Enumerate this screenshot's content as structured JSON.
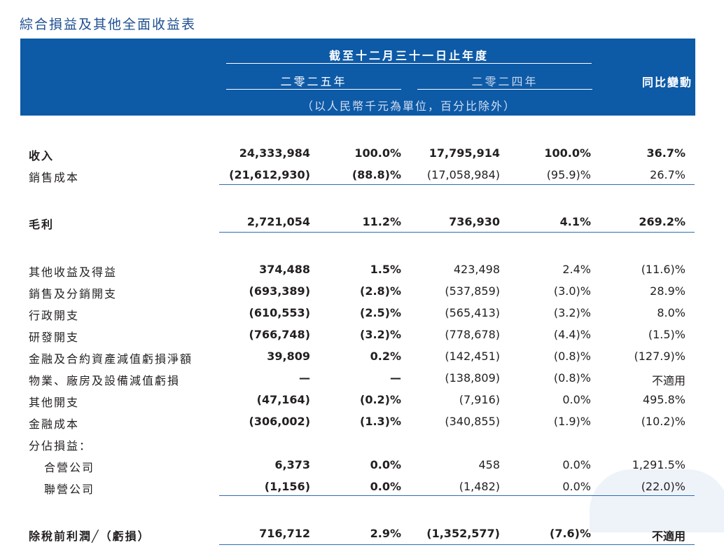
{
  "title": "綜合損益及其他全面收益表",
  "header": {
    "period": "截至十二月三十一日止年度",
    "year_current": "二零二五年",
    "year_prior": "二零二四年",
    "yoy": "同比變動",
    "unit_note": "（以人民幣千元為單位，百分比除外）"
  },
  "rows": [
    {
      "label": "收入",
      "bold": true,
      "v2025": "24,333,984",
      "p2025": "100.0%",
      "v2024": "17,795,914",
      "p2024": "100.0%",
      "yoy": "36.7%"
    },
    {
      "label": "銷售成本",
      "bold": false,
      "v2025": "(21,612,930)",
      "p2025": "(88.8)%",
      "v2024": "(17,058,984)",
      "p2024": "(95.9)%",
      "yoy": "26.7%"
    },
    {
      "label": "毛利",
      "bold": true,
      "v2025": "2,721,054",
      "p2025": "11.2%",
      "v2024": "736,930",
      "p2024": "4.1%",
      "yoy": "269.2%"
    },
    {
      "label": "其他收益及得益",
      "bold": false,
      "v2025": "374,488",
      "p2025": "1.5%",
      "v2024": "423,498",
      "p2024": "2.4%",
      "yoy": "(11.6)%"
    },
    {
      "label": "銷售及分銷開支",
      "bold": false,
      "v2025": "(693,389)",
      "p2025": "(2.8)%",
      "v2024": "(537,859)",
      "p2024": "(3.0)%",
      "yoy": "28.9%"
    },
    {
      "label": "行政開支",
      "bold": false,
      "v2025": "(610,553)",
      "p2025": "(2.5)%",
      "v2024": "(565,413)",
      "p2024": "(3.2)%",
      "yoy": "8.0%"
    },
    {
      "label": "研發開支",
      "bold": false,
      "v2025": "(766,748)",
      "p2025": "(3.2)%",
      "v2024": "(778,678)",
      "p2024": "(4.4)%",
      "yoy": "(1.5)%"
    },
    {
      "label": "金融及合約資產減值虧損淨額",
      "bold": false,
      "v2025": "39,809",
      "p2025": "0.2%",
      "v2024": "(142,451)",
      "p2024": "(0.8)%",
      "yoy": "(127.9)%"
    },
    {
      "label": "物業、廠房及設備減值虧損",
      "bold": false,
      "v2025": "—",
      "p2025": "—",
      "v2024": "(138,809)",
      "p2024": "(0.8)%",
      "yoy": "不適用"
    },
    {
      "label": "其他開支",
      "bold": false,
      "v2025": "(47,164)",
      "p2025": "(0.2)%",
      "v2024": "(7,916)",
      "p2024": "0.0%",
      "yoy": "495.8%"
    },
    {
      "label": "金融成本",
      "bold": false,
      "v2025": "(306,002)",
      "p2025": "(1.3)%",
      "v2024": "(340,855)",
      "p2024": "(1.9)%",
      "yoy": "(10.2)%"
    },
    {
      "label": "分佔損益：",
      "bold": false,
      "v2025": "",
      "p2025": "",
      "v2024": "",
      "p2024": "",
      "yoy": ""
    },
    {
      "label": "合營公司",
      "bold": false,
      "v2025": "6,373",
      "p2025": "0.0%",
      "v2024": "458",
      "p2024": "0.0%",
      "yoy": "1,291.5%"
    },
    {
      "label": "聯營公司",
      "bold": false,
      "v2025": "(1,156)",
      "p2025": "0.0%",
      "v2024": "(1,482)",
      "p2024": "0.0%",
      "yoy": "(22.0)%"
    },
    {
      "label": "除稅前利潤╱（虧損）",
      "bold": true,
      "v2025": "716,712",
      "p2025": "2.9%",
      "v2024": "(1,352,577)",
      "p2024": "(7.6)%",
      "yoy": "不適用"
    }
  ]
}
